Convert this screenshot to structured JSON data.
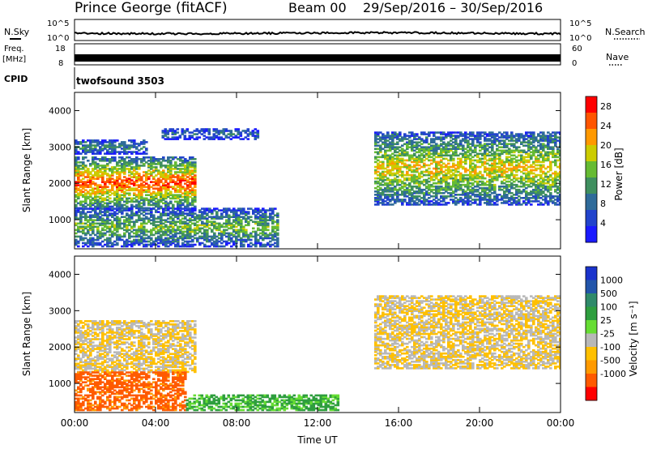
{
  "header": {
    "title": "Prince George (fitACF)",
    "beam": "Beam 00",
    "date_range": "29/Sep/2016 – 30/Sep/2016"
  },
  "top_panels": {
    "nsky_label": "N.Sky",
    "nsky_ticks": [
      "10^5",
      "10^0"
    ],
    "nsearch_label": "N.Search",
    "nsearch_ticks": [
      "10^5",
      "10^0"
    ],
    "freq_label": "Freq.",
    "freq_unit": "[MHz]",
    "freq_ticks": [
      "18",
      "8"
    ],
    "nave_label": "Nave",
    "nave_ticks": [
      "60",
      "0"
    ],
    "cpid_label": "CPID",
    "cpid_value": "twofsound 3503"
  },
  "colors": {
    "power": [
      "#1a1aff",
      "#2244cc",
      "#2f6b9a",
      "#3f8f5f",
      "#66bb33",
      "#cccc00",
      "#ff9900",
      "#ff5500",
      "#ff0000"
    ],
    "velocity": [
      "#ff0000",
      "#ff5a00",
      "#ff9a00",
      "#ffc000",
      "#b8b8b8",
      "#66dd33",
      "#2e9e3e",
      "#2f8a6a",
      "#2255aa",
      "#1a33cc"
    ]
  },
  "chart_data": [
    {
      "type": "heatmap",
      "title": "",
      "ylabel": "Slant Range [km]",
      "xlabel": "",
      "xlim": [
        "00:00",
        "00:00"
      ],
      "ylim": [
        200,
        4500
      ],
      "y_ticks": [
        "1000",
        "2000",
        "3000",
        "4000"
      ],
      "x_ticks": [
        "00:00",
        "04:00",
        "08:00",
        "12:00",
        "16:00",
        "20:00",
        "00:00"
      ],
      "colorbar": {
        "label": "Power [dB]",
        "ticks": [
          "4",
          "8",
          "12",
          "16",
          "20",
          "24",
          "28"
        ],
        "range": [
          0,
          30
        ]
      },
      "regions": [
        {
          "t": [
            0.0,
            6.0
          ],
          "range_km": [
            1300,
            2700
          ],
          "value": 24
        },
        {
          "t": [
            0.0,
            3.5
          ],
          "range_km": [
            2800,
            3200
          ],
          "value": 10
        },
        {
          "t": [
            0.0,
            10.0
          ],
          "range_km": [
            250,
            1300
          ],
          "value": 14
        },
        {
          "t": [
            4.3,
            9.0
          ],
          "range_km": [
            3200,
            3500
          ],
          "value": 8
        },
        {
          "t": [
            14.8,
            24.0
          ],
          "range_km": [
            1400,
            3400
          ],
          "value": 18
        }
      ]
    },
    {
      "type": "heatmap",
      "title": "",
      "ylabel": "Slant Range [km]",
      "xlabel": "Time UT",
      "xlim": [
        "00:00",
        "00:00"
      ],
      "ylim": [
        200,
        4500
      ],
      "y_ticks": [
        "1000",
        "2000",
        "3000",
        "4000"
      ],
      "x_ticks": [
        "00:00",
        "04:00",
        "08:00",
        "12:00",
        "16:00",
        "20:00",
        "00:00"
      ],
      "colorbar": {
        "label": "Velocity [m s⁻¹]",
        "ticks": [
          "1000",
          "500",
          "100",
          "25",
          "-25",
          "-100",
          "-500",
          "-1000"
        ],
        "range": [
          -1000,
          1000
        ]
      },
      "regions": [
        {
          "t": [
            0.0,
            6.0
          ],
          "range_km": [
            1300,
            2700
          ],
          "value": 0
        },
        {
          "t": [
            0.0,
            5.5
          ],
          "range_km": [
            250,
            1300
          ],
          "value": -150
        },
        {
          "t": [
            5.5,
            13.0
          ],
          "range_km": [
            250,
            700
          ],
          "value": 120
        },
        {
          "t": [
            14.8,
            24.0
          ],
          "range_km": [
            1400,
            3400
          ],
          "value": 0
        }
      ]
    }
  ]
}
